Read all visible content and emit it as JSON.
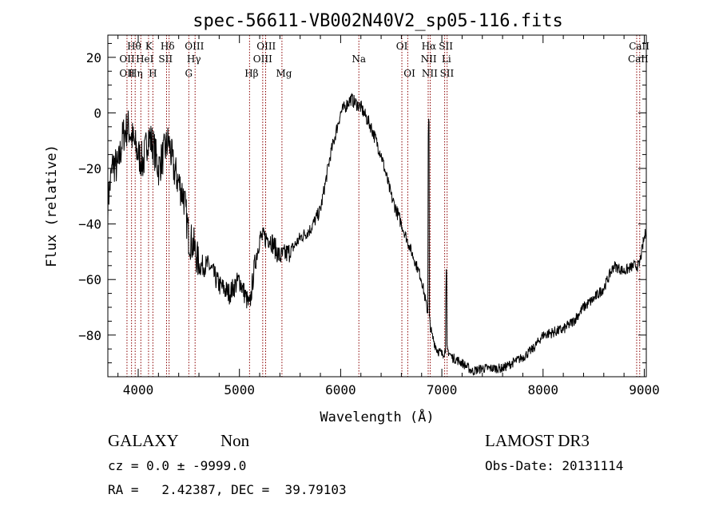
{
  "title": "spec-56611-VB002N40V2_sp05-116.fits",
  "xlabel": "Wavelength (Å)",
  "ylabel": "Flux (relative)",
  "footer": {
    "class_label": "GALAXY",
    "subclass_label": "Non",
    "survey": "LAMOST DR3",
    "cz_line": "cz = 0.0 ± -9999.0",
    "obs_date": "Obs-Date: 20131114",
    "radec_line": "RA =   2.42387, DEC =  39.79103"
  },
  "colors": {
    "spectrum": "#000000",
    "line_marker": "#8b0000"
  },
  "chart_data": {
    "type": "line",
    "xlim": [
      3700,
      9020
    ],
    "ylim": [
      -95,
      28
    ],
    "x_ticks": [
      4000,
      5000,
      6000,
      7000,
      8000,
      9000
    ],
    "x_tick_labels": [
      "4000",
      "5000",
      "6000",
      "7000",
      "8000",
      "9000"
    ],
    "y_ticks": [
      20,
      0,
      -20,
      -40,
      -60,
      -80
    ],
    "y_tick_labels": [
      "20",
      "0",
      "−20",
      "−40",
      "−60",
      "−80"
    ],
    "grid": false,
    "legend": "none",
    "series": [
      {
        "x": [
          3700,
          3750,
          3800,
          3850,
          3900,
          3950,
          4000,
          4050,
          4100,
          4150,
          4200,
          4250,
          4300,
          4350,
          4400,
          4450,
          4500,
          4550,
          4600,
          4700,
          4800,
          4900,
          5000,
          5100,
          5150,
          5200,
          5300,
          5400,
          5500,
          5600,
          5700,
          5800,
          5900,
          6000,
          6100,
          6200,
          6300,
          6400,
          6500,
          6600,
          6700,
          6800,
          6850,
          6880,
          6900,
          6950,
          7000,
          7050,
          7100,
          7200,
          7300,
          7400,
          7500,
          7600,
          7700,
          7800,
          7900,
          8000,
          8100,
          8200,
          8300,
          8400,
          8500,
          8600,
          8700,
          8800,
          8900,
          8950,
          9000,
          9020
        ],
        "y": [
          -32,
          -18,
          -20,
          -8,
          -5,
          -10,
          -15,
          -18,
          -8,
          -12,
          -20,
          -15,
          -10,
          -20,
          -25,
          -30,
          -45,
          -48,
          -55,
          -55,
          -62,
          -65,
          -60,
          -70,
          -55,
          -45,
          -45,
          -52,
          -50,
          -45,
          -42,
          -35,
          -15,
          0,
          5,
          2,
          -5,
          -15,
          -30,
          -40,
          -50,
          -60,
          -70,
          -75,
          -80,
          -85,
          -87,
          -85,
          -88,
          -90,
          -93,
          -92,
          -92,
          -92,
          -90,
          -88,
          -85,
          -80,
          -79,
          -78,
          -75,
          -70,
          -67,
          -63,
          -55,
          -57,
          -55,
          -55,
          -45,
          -42
        ]
      }
    ],
    "spectral_lines": [
      {
        "wl": 3934,
        "labels": [
          "OII"
        ]
      },
      {
        "wl": 3970,
        "labels": [
          "Hθ",
          "HeI"
        ]
      },
      {
        "wl": 3889,
        "labels": [
          "OII"
        ]
      },
      {
        "wl": 4026,
        "labels": [
          "Hη"
        ]
      },
      {
        "wl": 4102,
        "labels": [
          "K",
          "H"
        ]
      },
      {
        "wl": 4145,
        "labels": []
      },
      {
        "wl": 4280,
        "labels": [
          "Hδ",
          "SII"
        ]
      },
      {
        "wl": 4305,
        "labels": []
      },
      {
        "wl": 4500,
        "labels": [
          "OIII",
          "Hγ",
          "G"
        ]
      },
      {
        "wl": 4562,
        "labels": []
      },
      {
        "wl": 5100,
        "labels": [
          "Hβ"
        ]
      },
      {
        "wl": 5230,
        "labels": [
          "OIII",
          "OIII"
        ]
      },
      {
        "wl": 5259,
        "labels": []
      },
      {
        "wl": 5420,
        "labels": [
          "Mg"
        ]
      },
      {
        "wl": 6180,
        "labels": [
          "Na"
        ]
      },
      {
        "wl": 6605,
        "labels": [
          "OI"
        ]
      },
      {
        "wl": 6663,
        "labels": [
          "OI"
        ]
      },
      {
        "wl": 6865,
        "labels": [
          "Hα",
          "NII"
        ]
      },
      {
        "wl": 6885,
        "labels": [
          "NII"
        ]
      },
      {
        "wl": 7028,
        "labels": [
          "SII",
          "Li",
          "SII"
        ]
      },
      {
        "wl": 7052,
        "labels": []
      },
      {
        "wl": 8925,
        "labels": [
          "CaII"
        ]
      },
      {
        "wl": 8955,
        "labels": [
          "CaII"
        ]
      }
    ],
    "line_label_rows": [
      {
        "text": "Hθ",
        "wl": 3960,
        "row": 0
      },
      {
        "text": "K",
        "wl": 4105,
        "row": 0
      },
      {
        "text": "Hδ",
        "wl": 4290,
        "row": 0
      },
      {
        "text": "OIII",
        "wl": 4555,
        "row": 0
      },
      {
        "text": "OIII",
        "wl": 5265,
        "row": 0
      },
      {
        "text": "OI",
        "wl": 6605,
        "row": 0
      },
      {
        "text": "Hα",
        "wl": 6872,
        "row": 0
      },
      {
        "text": "SII",
        "wl": 7040,
        "row": 0
      },
      {
        "text": "CaII",
        "wl": 8950,
        "row": 0
      },
      {
        "text": "OII",
        "wl": 3890,
        "row": 1
      },
      {
        "text": "HeI",
        "wl": 4065,
        "row": 1
      },
      {
        "text": "SII",
        "wl": 4270,
        "row": 1
      },
      {
        "text": "Hγ",
        "wl": 4550,
        "row": 1
      },
      {
        "text": "OIII",
        "wl": 5230,
        "row": 1
      },
      {
        "text": "Na",
        "wl": 6180,
        "row": 1
      },
      {
        "text": "NII",
        "wl": 6870,
        "row": 1
      },
      {
        "text": "Li",
        "wl": 7045,
        "row": 1
      },
      {
        "text": "CaII",
        "wl": 8940,
        "row": 1
      },
      {
        "text": "OII",
        "wl": 3890,
        "row": 2
      },
      {
        "text": "Hη",
        "wl": 3975,
        "row": 2
      },
      {
        "text": "H",
        "wl": 4145,
        "row": 2
      },
      {
        "text": "G",
        "wl": 4500,
        "row": 2
      },
      {
        "text": "Hβ",
        "wl": 5120,
        "row": 2
      },
      {
        "text": "Mg",
        "wl": 5440,
        "row": 2
      },
      {
        "text": "OI",
        "wl": 6680,
        "row": 2
      },
      {
        "text": "NII",
        "wl": 6880,
        "row": 2
      },
      {
        "text": "SII",
        "wl": 7050,
        "row": 2
      }
    ]
  }
}
